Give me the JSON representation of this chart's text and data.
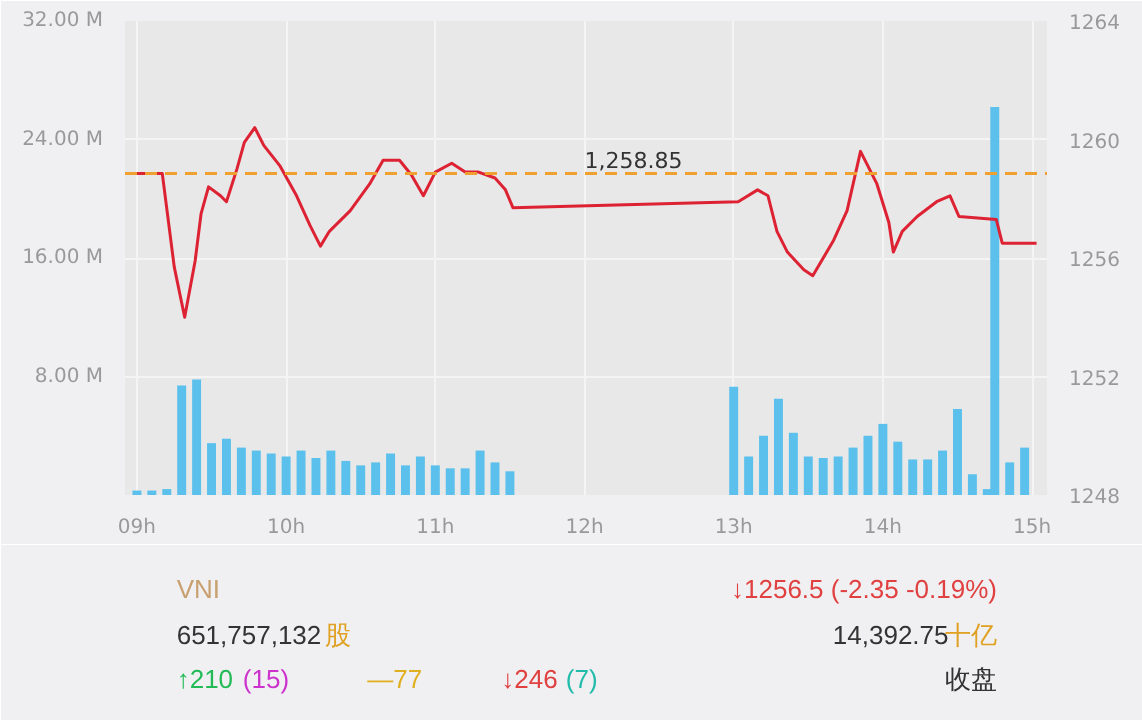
{
  "chart_data": {
    "type": "bar",
    "xlim": [
      8.92,
      15.1
    ],
    "ylim": [
      0,
      32
    ],
    "y2lim": [
      1248,
      1264
    ],
    "xticks": [
      {
        "value": 9,
        "label": "09h"
      },
      {
        "value": 10,
        "label": "10h"
      },
      {
        "value": 11,
        "label": "11h"
      },
      {
        "value": 12,
        "label": "12h"
      },
      {
        "value": 13,
        "label": "13h"
      },
      {
        "value": 14,
        "label": "14h"
      },
      {
        "value": 15,
        "label": "15h"
      }
    ],
    "yticks": [
      {
        "value": 0,
        "label": null
      },
      {
        "value": 8,
        "label": "8.00 M"
      },
      {
        "value": 16,
        "label": "16.00 M"
      },
      {
        "value": 24,
        "label": "24.00 M"
      },
      {
        "value": 32,
        "label": "32.00 M"
      }
    ],
    "y2ticks": [
      1248,
      1252,
      1256,
      1260,
      1264
    ],
    "grid": true,
    "series": [
      {
        "color": "#5bc0eb",
        "x": [
          9.0,
          9.1,
          9.2,
          9.3,
          9.4,
          9.5,
          9.6,
          9.7,
          9.8,
          9.9,
          10.0,
          10.1,
          10.2,
          10.3,
          10.4,
          10.5,
          10.6,
          10.7,
          10.8,
          10.9,
          11.0,
          11.1,
          11.2,
          11.3,
          11.4,
          11.5,
          13.0,
          13.1,
          13.2,
          13.3,
          13.4,
          13.5,
          13.6,
          13.7,
          13.8,
          13.9,
          14.0,
          14.1,
          14.2,
          14.3,
          14.4,
          14.5,
          14.6,
          14.7,
          14.75,
          14.85,
          14.95
        ],
        "values": [
          0.3,
          0.3,
          0.4,
          7.4,
          7.8,
          3.5,
          3.8,
          3.2,
          3.0,
          2.8,
          2.6,
          3.0,
          2.5,
          3.0,
          2.3,
          2.0,
          2.2,
          2.8,
          2.0,
          2.6,
          2.0,
          1.8,
          1.8,
          3.0,
          2.2,
          1.6,
          7.3,
          2.6,
          4.0,
          6.5,
          4.2,
          2.6,
          2.5,
          2.6,
          3.2,
          4.0,
          4.8,
          3.6,
          2.4,
          2.4,
          3.0,
          5.8,
          1.4,
          0.4,
          26.2,
          2.2,
          3.2
        ]
      },
      {
        "type": "line",
        "axis": "y2",
        "color": "#dd2233",
        "x": [
          8.97,
          9.17,
          9.25,
          9.32,
          9.39,
          9.43,
          9.48,
          9.56,
          9.6,
          9.67,
          9.72,
          9.79,
          9.85,
          9.96,
          10.07,
          10.16,
          10.23,
          10.29,
          10.43,
          10.56,
          10.65,
          10.76,
          10.84,
          10.92,
          11.0,
          11.11,
          11.2,
          11.29,
          11.4,
          11.47,
          11.52,
          13.03,
          13.16,
          13.23,
          13.29,
          13.36,
          13.47,
          13.53,
          13.67,
          13.76,
          13.85,
          13.96,
          14.04,
          14.07,
          14.13,
          14.23,
          14.36,
          14.45,
          14.51,
          14.76,
          14.8,
          15.03
        ],
        "values": [
          1258.85,
          1258.85,
          1255.7,
          1254.0,
          1255.9,
          1257.5,
          1258.4,
          1258.1,
          1257.9,
          1259.0,
          1259.9,
          1260.4,
          1259.8,
          1259.1,
          1258.1,
          1257.1,
          1256.4,
          1256.9,
          1257.6,
          1258.5,
          1259.3,
          1259.3,
          1258.8,
          1258.1,
          1258.9,
          1259.2,
          1258.9,
          1258.9,
          1258.7,
          1258.3,
          1257.7,
          1257.9,
          1258.3,
          1258.1,
          1256.9,
          1256.2,
          1255.6,
          1255.4,
          1256.6,
          1257.6,
          1259.6,
          1258.5,
          1257.2,
          1256.2,
          1256.9,
          1257.4,
          1257.9,
          1258.1,
          1257.4,
          1257.3,
          1256.5,
          1256.5
        ]
      }
    ],
    "ref_lines": [
      {
        "axis": "y2",
        "value": 1258.85,
        "label": "1,258.85",
        "color": "#f0a030",
        "line_style": "dashed"
      }
    ],
    "annotations": [
      "VNI",
      "↓1256.5 (-2.35 -0.19%)",
      "651,757,132",
      "股",
      "14,392.75",
      "十亿",
      "↑210",
      "(15)",
      "—77",
      "↓246",
      "(7)",
      "收盘"
    ]
  }
}
